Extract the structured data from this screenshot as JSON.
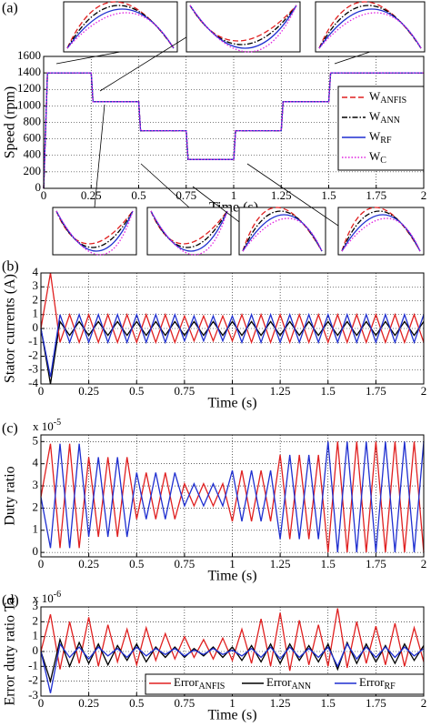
{
  "chart_data": [
    {
      "type": "line",
      "panel_label": "(a)",
      "xlabel": "Time (s)",
      "ylabel": "Speed (rpm)",
      "x": [
        0,
        0.02,
        0.25,
        0.26,
        0.5,
        0.51,
        0.75,
        0.76,
        1,
        1.01,
        1.25,
        1.26,
        1.5,
        1.51,
        2
      ],
      "series": [
        {
          "name": "W",
          "name_sub": "ANFIS",
          "color": "#e02020",
          "dash": "dashed",
          "values": [
            0,
            1400,
            1400,
            1050,
            1050,
            700,
            700,
            350,
            350,
            700,
            700,
            1050,
            1050,
            1400,
            1400
          ]
        },
        {
          "name": "W",
          "name_sub": "ANN",
          "color": "#000000",
          "dash": "dashdot",
          "values": [
            0,
            1400,
            1400,
            1050,
            1050,
            700,
            700,
            350,
            350,
            700,
            700,
            1050,
            1050,
            1400,
            1400
          ]
        },
        {
          "name": "W",
          "name_sub": "RF",
          "color": "#1f2fd0",
          "dash": "solid",
          "values": [
            0,
            1400,
            1400,
            1050,
            1050,
            700,
            700,
            350,
            350,
            700,
            700,
            1050,
            1050,
            1400,
            1400
          ]
        },
        {
          "name": "W",
          "name_sub": "C",
          "color": "#e020e0",
          "dash": "dotted",
          "values": [
            0,
            1400,
            1400,
            1050,
            1050,
            700,
            700,
            350,
            350,
            700,
            700,
            1050,
            1050,
            1400,
            1400
          ]
        }
      ],
      "xlim": [
        0,
        2
      ],
      "xticks": [
        0,
        0.25,
        0.5,
        0.75,
        1,
        1.25,
        1.5,
        1.75,
        2
      ],
      "ylim": [
        0,
        1600
      ],
      "yticks": [
        0,
        200,
        400,
        600,
        800,
        1000,
        1200,
        1400,
        1600
      ],
      "grid": true,
      "legend": "right"
    },
    {
      "type": "line",
      "panel_label": "(b)",
      "xlabel": "Time (s)",
      "ylabel": "Stator currents (A)",
      "x": [
        0,
        0.05,
        0.1,
        0.15,
        0.2,
        0.25,
        0.3,
        0.35,
        0.4,
        0.45,
        0.5,
        0.55,
        0.6,
        0.65,
        0.7,
        0.75,
        0.8,
        0.85,
        0.9,
        0.95,
        1,
        1.05,
        1.1,
        1.15,
        1.2,
        1.25,
        1.3,
        1.35,
        1.4,
        1.45,
        1.5,
        1.55,
        1.6,
        1.65,
        1.7,
        1.75,
        1.8,
        1.85,
        1.9,
        1.95,
        2
      ],
      "series": [
        {
          "color": "#000000",
          "values": [
            0,
            -4,
            0.5,
            -0.5,
            0.5,
            -0.5,
            0.5,
            -0.5,
            0.5,
            -0.5,
            0.5,
            -0.5,
            0.5,
            -0.5,
            0.5,
            -0.5,
            0.5,
            -0.5,
            0.5,
            -0.5,
            0.5,
            -0.5,
            0.5,
            -0.5,
            0.5,
            -0.5,
            0.5,
            -0.5,
            0.5,
            -0.5,
            0.5,
            -0.5,
            0.5,
            -0.5,
            0.5,
            -0.5,
            0.5,
            -0.5,
            0.5,
            -0.5,
            0.5
          ]
        },
        {
          "color": "#e02020",
          "values": [
            0,
            4,
            -1,
            1,
            -1,
            1,
            -1,
            1,
            -1,
            1,
            -1,
            1,
            -1,
            1,
            -1,
            0.9,
            -0.9,
            0.9,
            -0.9,
            0.9,
            -0.9,
            1,
            -1,
            1,
            -1,
            1,
            -1,
            1,
            -1,
            1,
            -1,
            1,
            -1,
            1,
            -1,
            1,
            -1,
            1,
            -1,
            1,
            -1
          ]
        },
        {
          "color": "#1f2fd0",
          "values": [
            0,
            -3.5,
            1,
            -1,
            1,
            -1,
            1,
            -1,
            1,
            -1,
            1,
            -1,
            1,
            -1,
            1,
            -0.9,
            0.9,
            -0.9,
            0.9,
            -0.9,
            0.9,
            -1,
            1,
            -1,
            1,
            -1,
            1,
            -1,
            1,
            -1,
            1,
            -1,
            1,
            -1,
            1,
            -1,
            1,
            -1,
            1,
            -1,
            1
          ]
        }
      ],
      "xlim": [
        0,
        2
      ],
      "xticks": [
        0,
        0.25,
        0.5,
        0.75,
        1,
        1.25,
        1.5,
        1.75,
        2
      ],
      "ylim": [
        -4,
        4
      ],
      "yticks": [
        -4,
        -3,
        -2,
        -1,
        0,
        1,
        2,
        3,
        4
      ],
      "grid": true
    },
    {
      "type": "line",
      "panel_label": "(c)",
      "xlabel": "Time (s)",
      "ylabel": "Duty ratio",
      "exponent_label": "x 10",
      "exponent_power": "-5",
      "x": [
        0,
        0.05,
        0.1,
        0.15,
        0.2,
        0.25,
        0.3,
        0.35,
        0.4,
        0.45,
        0.5,
        0.55,
        0.6,
        0.65,
        0.7,
        0.75,
        0.8,
        0.85,
        0.9,
        0.95,
        1,
        1.05,
        1.1,
        1.15,
        1.2,
        1.25,
        1.3,
        1.35,
        1.4,
        1.45,
        1.5,
        1.55,
        1.6,
        1.65,
        1.7,
        1.75,
        1.8,
        1.85,
        1.9,
        1.95,
        2
      ],
      "series": [
        {
          "color": "#e02020",
          "values": [
            2.5,
            4.9,
            0.2,
            4.9,
            0.2,
            4.3,
            0.7,
            4.3,
            0.7,
            4.3,
            1.5,
            3.6,
            1.5,
            3.6,
            1.5,
            3.1,
            2.1,
            3.1,
            2.1,
            3.1,
            1.4,
            3.7,
            1.4,
            3.7,
            1.4,
            4.4,
            0.6,
            4.4,
            0.6,
            4.4,
            0,
            5,
            0,
            5,
            0,
            5,
            0,
            5,
            0,
            5,
            0
          ]
        },
        {
          "color": "#1f2fd0",
          "values": [
            2.5,
            0.2,
            4.9,
            0.2,
            4.9,
            0.7,
            4.3,
            0.7,
            4.3,
            0.7,
            3.6,
            1.5,
            3.6,
            1.5,
            3.6,
            2.1,
            3.1,
            2.1,
            3.1,
            2.1,
            3.7,
            1.4,
            3.7,
            1.4,
            3.7,
            0.6,
            4.4,
            0.6,
            4.4,
            0.6,
            5,
            0,
            5,
            0,
            5,
            0,
            5,
            0,
            5,
            0,
            5
          ]
        }
      ],
      "xlim": [
        0,
        2
      ],
      "xticks": [
        0,
        0.25,
        0.5,
        0.75,
        1,
        1.25,
        1.5,
        1.75,
        2
      ],
      "ylim": [
        -0.2,
        5.3
      ],
      "yticks": [
        0,
        1,
        2,
        3,
        4,
        5
      ],
      "grid": true
    },
    {
      "type": "line",
      "panel_label": "(d)",
      "xlabel": "Time (s)",
      "ylabel": "Error duty ratio Ta",
      "exponent_label": "x 10",
      "exponent_power": "-6",
      "x": [
        0,
        0.05,
        0.1,
        0.15,
        0.2,
        0.25,
        0.3,
        0.35,
        0.4,
        0.45,
        0.5,
        0.55,
        0.6,
        0.65,
        0.7,
        0.75,
        0.8,
        0.85,
        0.9,
        0.95,
        1,
        1.05,
        1.1,
        1.15,
        1.2,
        1.25,
        1.3,
        1.35,
        1.4,
        1.45,
        1.5,
        1.55,
        1.6,
        1.65,
        1.7,
        1.75,
        1.8,
        1.85,
        1.9,
        1.95,
        2
      ],
      "series": [
        {
          "name": "Error",
          "name_sub": "ANFIS",
          "color": "#e02020",
          "values": [
            0,
            2.5,
            -1.2,
            2,
            -0.8,
            2.3,
            -1,
            1.8,
            -0.7,
            1.5,
            -0.9,
            1.6,
            -0.6,
            1.2,
            -0.5,
            1,
            -0.4,
            0.8,
            -0.5,
            0.9,
            -0.6,
            1.5,
            -0.8,
            2.2,
            -1,
            2.6,
            -1.3,
            2.1,
            -0.9,
            1.8,
            -1,
            2.9,
            -1.1,
            2,
            -0.8,
            1.7,
            -0.9,
            1.9,
            -1,
            1.6,
            -0.7
          ]
        },
        {
          "name": "Error",
          "name_sub": "ANN",
          "color": "#000000",
          "values": [
            0,
            -2,
            0.8,
            -1,
            0.6,
            -0.8,
            0.5,
            -0.9,
            0.4,
            -0.6,
            0.5,
            -0.7,
            0.3,
            -0.4,
            0.3,
            -0.4,
            0.2,
            -0.3,
            0.3,
            -0.4,
            0.3,
            -0.6,
            0.4,
            -0.7,
            0.5,
            -0.8,
            0.5,
            -0.6,
            0.4,
            -0.7,
            0.5,
            -1.2,
            0.6,
            -0.8,
            0.5,
            -0.7,
            0.4,
            -0.8,
            0.5,
            -0.6,
            0.4
          ]
        },
        {
          "name": "Error",
          "name_sub": "RF",
          "color": "#1f2fd0",
          "values": [
            0,
            -2.8,
            0.5,
            -0.4,
            0.3,
            -0.5,
            0.3,
            -0.3,
            0.2,
            -0.4,
            0.3,
            -0.3,
            0.2,
            -0.2,
            0.2,
            -0.3,
            0.1,
            -0.2,
            0.2,
            -0.2,
            0.1,
            -0.3,
            0.2,
            -0.4,
            0.3,
            -0.5,
            0.3,
            -0.4,
            0.2,
            -0.4,
            0.3,
            -1,
            0.5,
            -0.5,
            0.3,
            -0.4,
            0.3,
            -0.4,
            0.3,
            -0.3,
            0.2
          ]
        }
      ],
      "xlim": [
        0,
        2
      ],
      "xticks": [
        0,
        0.25,
        0.5,
        0.75,
        1,
        1.25,
        1.5,
        1.75,
        2
      ],
      "ylim": [
        -3,
        3
      ],
      "yticks": [
        -3,
        -2,
        -1,
        0,
        1,
        2,
        3
      ],
      "grid": true,
      "legend": "lower right"
    }
  ]
}
